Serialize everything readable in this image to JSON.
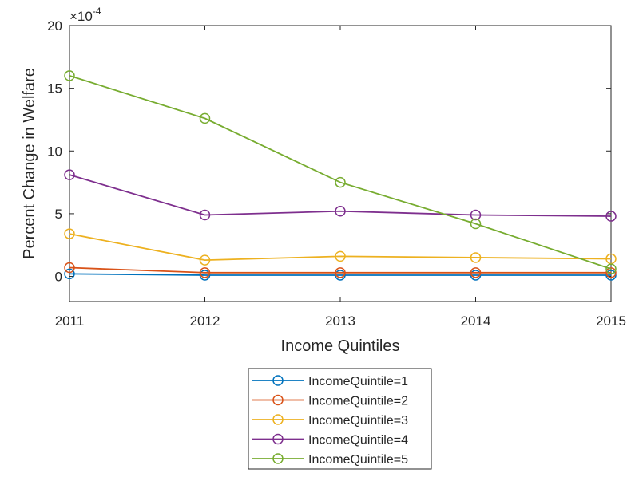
{
  "chart_data": {
    "type": "line",
    "title": "",
    "xlabel": "Income Quintiles",
    "ylabel": "Percent Change in Welfare",
    "y_exponent_label": "×10",
    "y_exponent": "-4",
    "x": [
      2011,
      2012,
      2013,
      2014,
      2015
    ],
    "xlim": [
      2011,
      2015
    ],
    "ylim": [
      -2,
      20
    ],
    "y_scale_factor": 0.0001,
    "yticks": [
      0,
      5,
      10,
      15,
      20
    ],
    "grid": false,
    "legend_placement": "below",
    "marker": "circle",
    "series": [
      {
        "name": "IncomeQuintile=1",
        "color": "#0072BD",
        "values": [
          0.2,
          0.1,
          0.1,
          0.1,
          0.1
        ]
      },
      {
        "name": "IncomeQuintile=2",
        "color": "#D95319",
        "values": [
          0.7,
          0.3,
          0.3,
          0.3,
          0.3
        ]
      },
      {
        "name": "IncomeQuintile=3",
        "color": "#EDB120",
        "values": [
          3.4,
          1.3,
          1.6,
          1.5,
          1.4
        ]
      },
      {
        "name": "IncomeQuintile=4",
        "color": "#7E2F8E",
        "values": [
          8.1,
          4.9,
          5.2,
          4.9,
          4.8
        ]
      },
      {
        "name": "IncomeQuintile=5",
        "color": "#77AC30",
        "values": [
          16.0,
          12.6,
          7.5,
          4.2,
          0.6
        ]
      }
    ]
  }
}
